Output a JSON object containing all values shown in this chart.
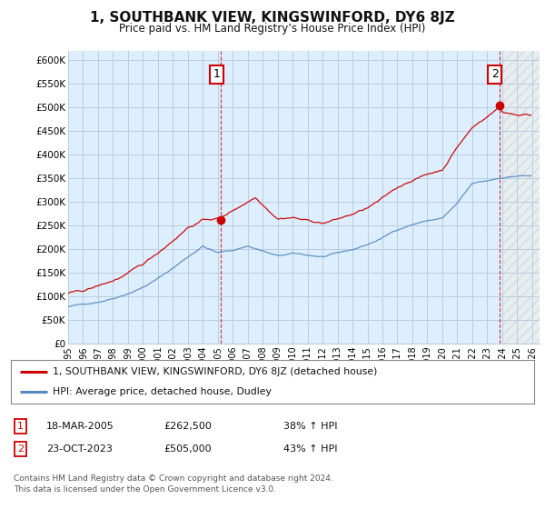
{
  "title": "1, SOUTHBANK VIEW, KINGSWINFORD, DY6 8JZ",
  "subtitle": "Price paid vs. HM Land Registry’s House Price Index (HPI)",
  "ylabel_ticks": [
    "£0",
    "£50K",
    "£100K",
    "£150K",
    "£200K",
    "£250K",
    "£300K",
    "£350K",
    "£400K",
    "£450K",
    "£500K",
    "£550K",
    "£600K"
  ],
  "ylim": [
    0,
    620000
  ],
  "yticks": [
    0,
    50000,
    100000,
    150000,
    200000,
    250000,
    300000,
    350000,
    400000,
    450000,
    500000,
    550000,
    600000
  ],
  "sale1": {
    "date_num": 2005.21,
    "price": 262500,
    "label": "1"
  },
  "sale2": {
    "date_num": 2023.81,
    "price": 505000,
    "label": "2"
  },
  "legend_line1": "1, SOUTHBANK VIEW, KINGSWINFORD, DY6 8JZ (detached house)",
  "legend_line2": "HPI: Average price, detached house, Dudley",
  "table_rows": [
    {
      "num": "1",
      "date": "18-MAR-2005",
      "price": "£262,500",
      "change": "38% ↑ HPI"
    },
    {
      "num": "2",
      "date": "23-OCT-2023",
      "price": "£505,000",
      "change": "43% ↑ HPI"
    }
  ],
  "footer": "Contains HM Land Registry data © Crown copyright and database right 2024.\nThis data is licensed under the Open Government Licence v3.0.",
  "red_color": "#cc0000",
  "blue_color": "#5588bb",
  "plot_bg": "#ddeeff",
  "hatch_bg": "#e8e8e8",
  "bg_color": "#ffffff",
  "grid_color": "#bbccdd",
  "label_box_color": "#cc0000",
  "xlim_start": 1995.0,
  "xlim_end": 2026.5,
  "hatch_start": 2024.0
}
